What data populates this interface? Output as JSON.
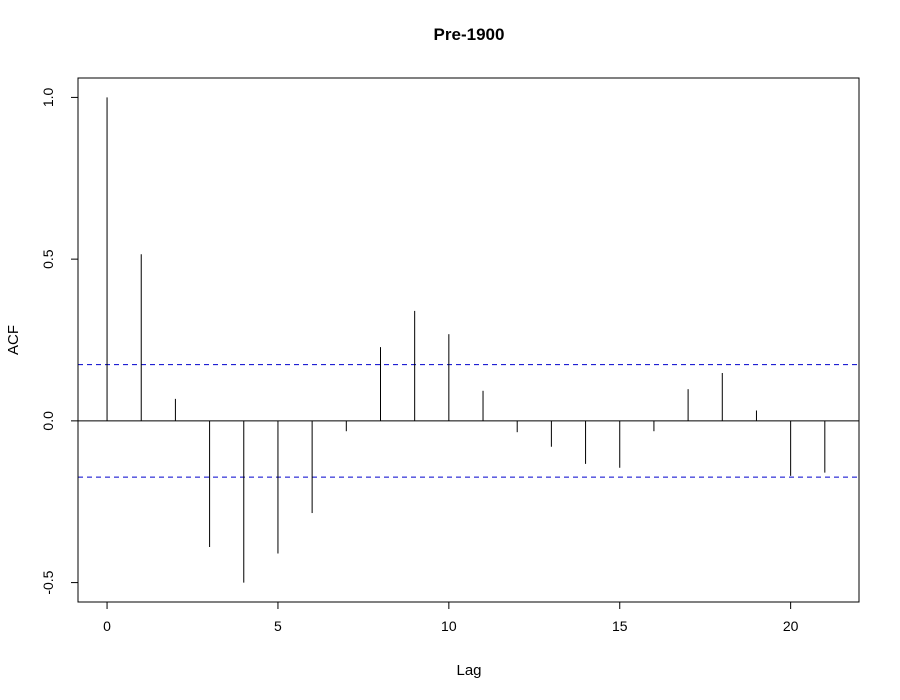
{
  "chart_data": {
    "type": "bar",
    "title": "Pre-1900",
    "xlabel": "Lag",
    "ylabel": "ACF",
    "lags": [
      0,
      1,
      2,
      3,
      4,
      5,
      6,
      7,
      8,
      9,
      10,
      11,
      12,
      13,
      14,
      15,
      16,
      17,
      18,
      19,
      20,
      21
    ],
    "values": [
      1.0,
      0.515,
      0.068,
      -0.39,
      -0.5,
      -0.41,
      -0.285,
      -0.032,
      0.228,
      0.34,
      0.268,
      0.093,
      -0.035,
      -0.08,
      -0.133,
      -0.145,
      -0.032,
      0.098,
      0.148,
      0.032,
      -0.17,
      -0.16
    ],
    "confidence_band": [
      0.174,
      -0.174
    ],
    "xlim": [
      -0.85,
      22
    ],
    "ylim": [
      -0.56,
      1.06
    ],
    "x_ticks": [
      0,
      5,
      10,
      15,
      20
    ],
    "x_tick_labels": [
      "0",
      "5",
      "10",
      "15",
      "20"
    ],
    "y_ticks": [
      -0.5,
      0.0,
      0.5,
      1.0
    ],
    "y_tick_labels": [
      "-0.5",
      "0.0",
      "0.5",
      "1.0"
    ],
    "colors": {
      "bars": "#000000",
      "confidence_band": "#0000cd",
      "zero_line": "#000000"
    },
    "grid": false
  }
}
